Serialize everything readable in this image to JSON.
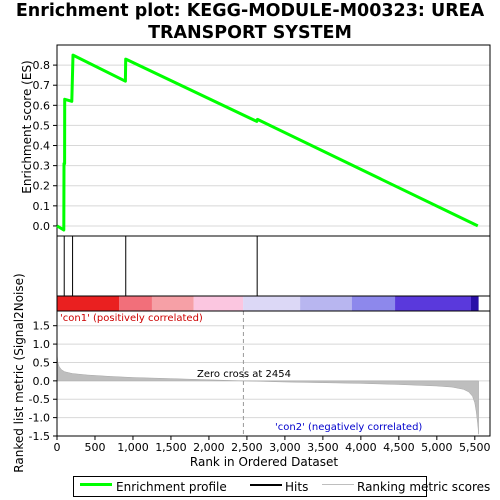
{
  "title_line1": "Enrichment plot: KEGG-MODULE-M00323: UREA",
  "title_line2": "TRANSPORT SYSTEM",
  "colors": {
    "profile": "#00ff00",
    "hits": "#000000",
    "metric_fill": "#bebebe",
    "pos_label": "#cc0000",
    "neg_label": "#0000cc",
    "grid": "#d8d8d8"
  },
  "chart_data": [
    {
      "type": "line",
      "panel": "enrichment-score",
      "ylabel": "Enrichment score (ES)",
      "xlim": [
        0,
        5700
      ],
      "ylim": [
        -0.05,
        0.9
      ],
      "yticks": [
        "0.0",
        "0.1",
        "0.2",
        "0.3",
        "0.4",
        "0.5",
        "0.6",
        "0.7",
        "0.8"
      ],
      "ytick_values": [
        0.0,
        0.1,
        0.2,
        0.3,
        0.4,
        0.5,
        0.6,
        0.7,
        0.8
      ],
      "grid": true,
      "series": [
        {
          "name": "Enrichment profile",
          "x": [
            0,
            90,
            92,
            100,
            102,
            195,
            210,
            900,
            905,
            2630,
            2640,
            5540
          ],
          "y": [
            0.0,
            -0.02,
            0.31,
            0.31,
            0.63,
            0.62,
            0.85,
            0.72,
            0.83,
            0.52,
            0.53,
            0.0
          ]
        }
      ]
    },
    {
      "type": "hits",
      "panel": "hits",
      "series": [
        {
          "name": "Hits",
          "x": [
            95,
            205,
            905,
            2635
          ]
        }
      ]
    },
    {
      "type": "heatmap",
      "panel": "rank-colorbar",
      "segments": [
        {
          "from": 0,
          "to": 820,
          "color": "#ea2020"
        },
        {
          "from": 820,
          "to": 1250,
          "color": "#f26f7a"
        },
        {
          "from": 1250,
          "to": 1800,
          "color": "#f6a0a6"
        },
        {
          "from": 1800,
          "to": 2450,
          "color": "#fbc6e0"
        },
        {
          "from": 2450,
          "to": 3200,
          "color": "#dcd8f6"
        },
        {
          "from": 3200,
          "to": 3880,
          "color": "#b8b6f0"
        },
        {
          "from": 3880,
          "to": 4450,
          "color": "#8d88ec"
        },
        {
          "from": 4450,
          "to": 5450,
          "color": "#5a39dc"
        },
        {
          "from": 5450,
          "to": 5550,
          "color": "#2a0fa8"
        }
      ]
    },
    {
      "type": "area",
      "panel": "ranked-metric",
      "ylabel": "Ranked list metric (Signal2Noise)",
      "xlabel": "Rank in Ordered Dataset",
      "xlim": [
        0,
        5700
      ],
      "ylim": [
        -1.5,
        1.9
      ],
      "xticks": [
        "0",
        "500",
        "1,000",
        "1,500",
        "2,000",
        "2,500",
        "3,000",
        "3,500",
        "4,000",
        "4,500",
        "5,000",
        "5,500"
      ],
      "xtick_values": [
        0,
        500,
        1000,
        1500,
        2000,
        2500,
        3000,
        3500,
        4000,
        4500,
        5000,
        5500
      ],
      "yticks": [
        "-1.5",
        "-1.0",
        "-0.5",
        "0.0",
        "0.5",
        "1.0",
        "1.5"
      ],
      "ytick_values": [
        -1.5,
        -1.0,
        -0.5,
        0.0,
        0.5,
        1.0,
        1.5
      ],
      "grid": true,
      "zero_cross": 2454,
      "series": [
        {
          "name": "Ranking metric scores",
          "x": [
            0,
            10,
            30,
            60,
            100,
            200,
            400,
            700,
            1000,
            1500,
            2000,
            2454,
            3000,
            3500,
            4000,
            4500,
            5000,
            5200,
            5350,
            5420,
            5470,
            5500,
            5520,
            5540,
            5550
          ],
          "y": [
            0.75,
            0.5,
            0.38,
            0.3,
            0.25,
            0.2,
            0.16,
            0.12,
            0.09,
            0.06,
            0.03,
            0.0,
            -0.03,
            -0.05,
            -0.07,
            -0.1,
            -0.14,
            -0.17,
            -0.23,
            -0.3,
            -0.42,
            -0.6,
            -0.85,
            -1.2,
            -1.45
          ]
        }
      ]
    }
  ],
  "annotations": {
    "pos_label": "'con1' (positively correlated)",
    "neg_label": "'con2' (negatively correlated)",
    "zero_cross": "Zero cross at 2454"
  },
  "legend": {
    "profile": "Enrichment profile",
    "hits": "Hits",
    "metric": "Ranking metric scores"
  }
}
